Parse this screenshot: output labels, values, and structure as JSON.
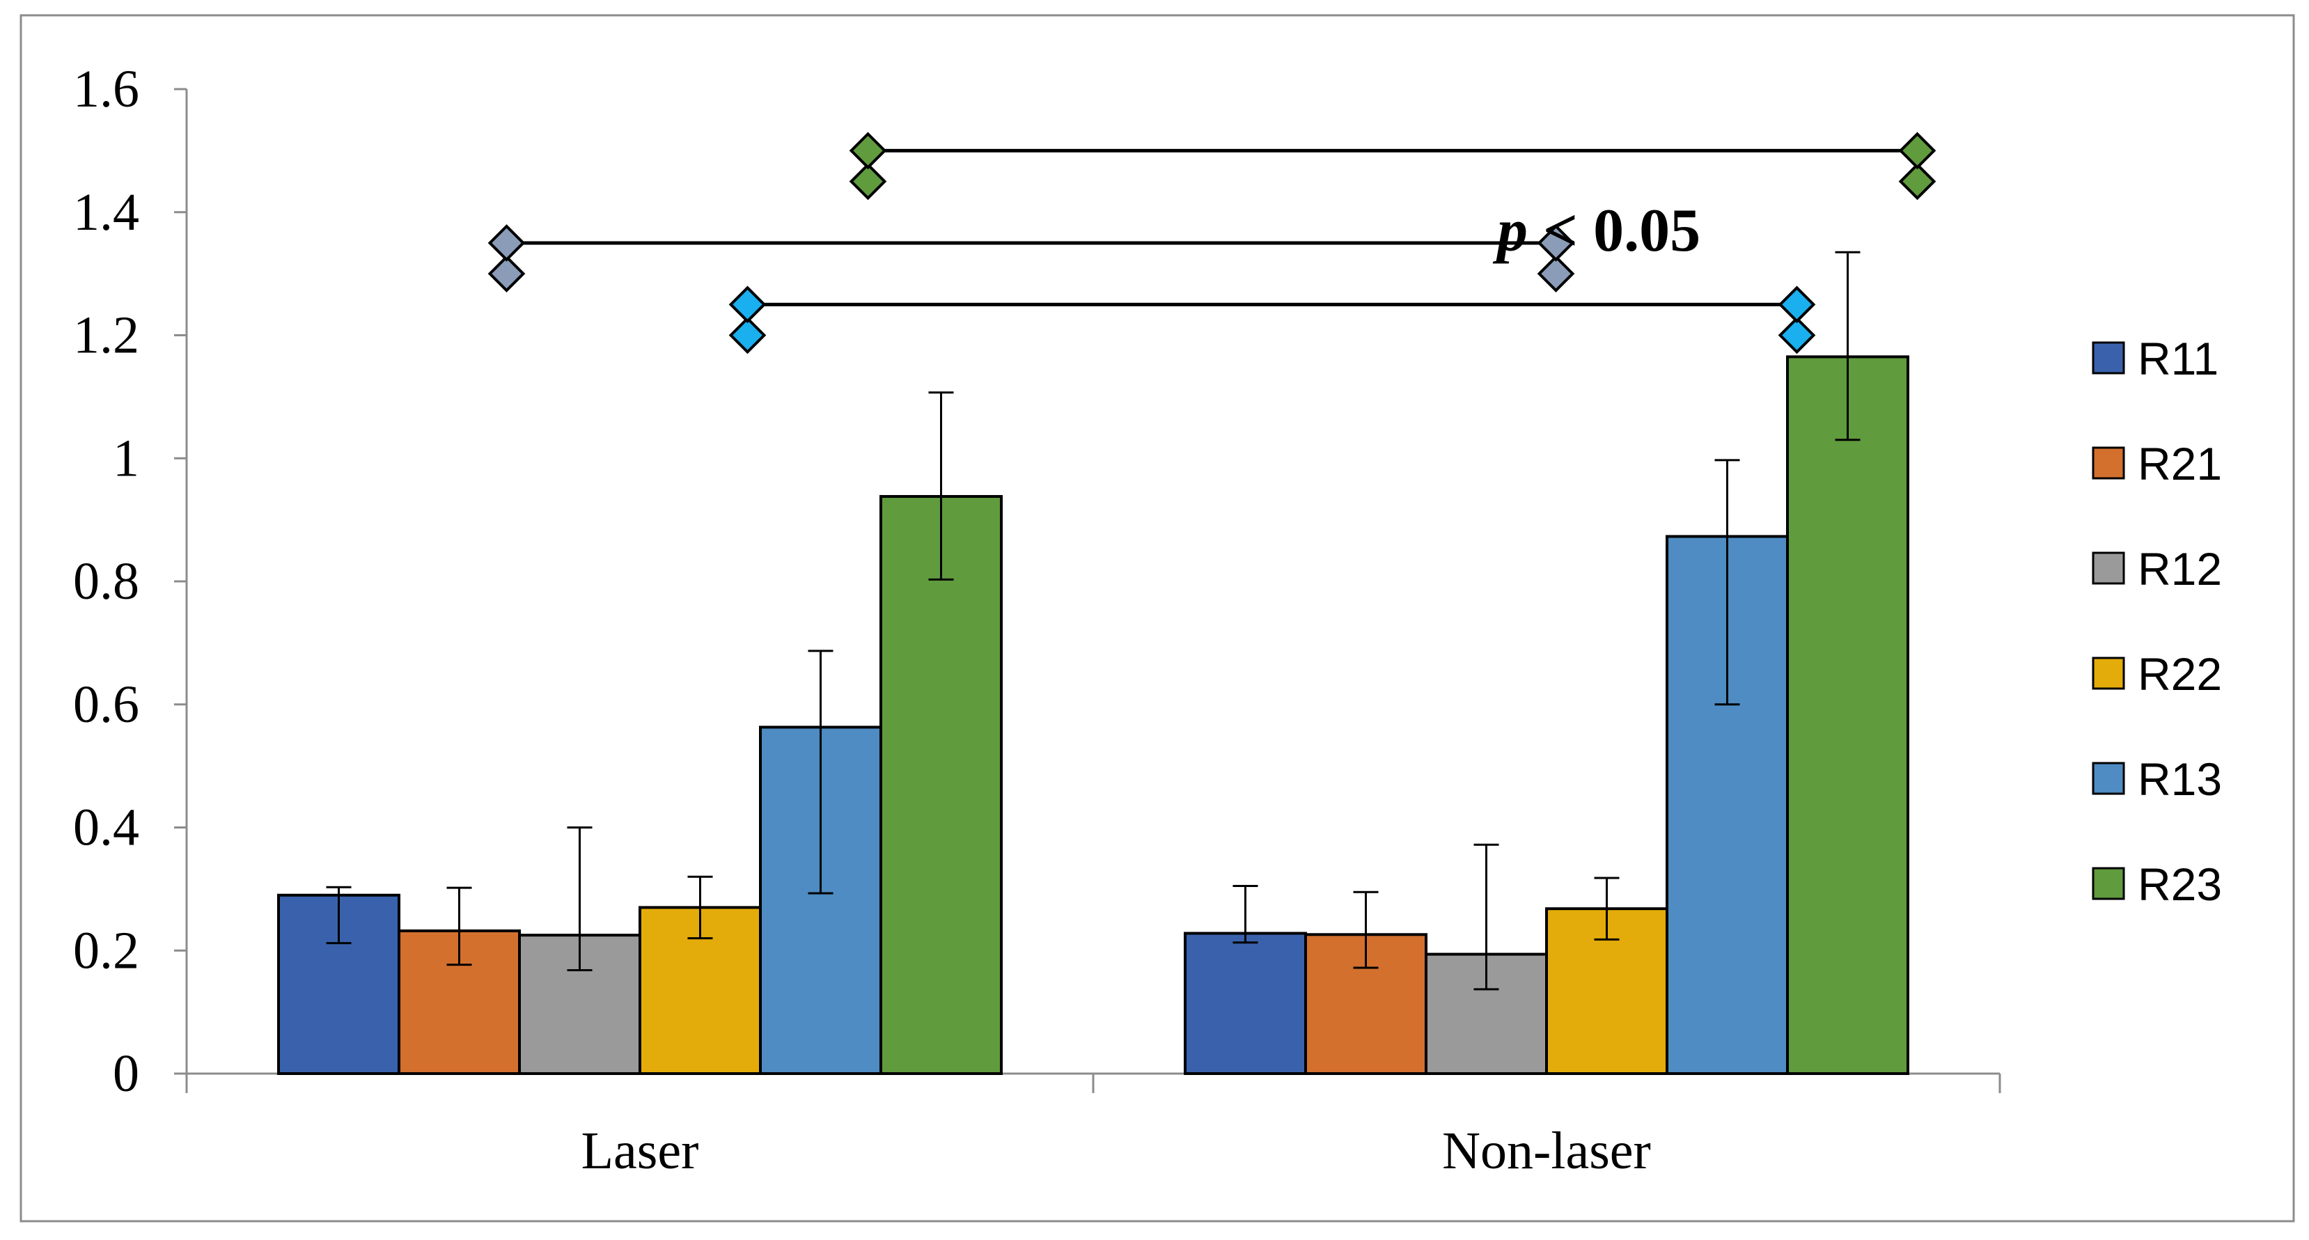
{
  "chart_data": {
    "type": "bar",
    "categories": [
      "Laser",
      "Non-laser"
    ],
    "series": [
      {
        "name": "R11",
        "color": "#3A62AC",
        "values": [
          0.29,
          0.228
        ],
        "err_low": [
          0.212,
          0.213
        ],
        "err_high": [
          0.303,
          0.305
        ]
      },
      {
        "name": "R21",
        "color": "#D4702E",
        "values": [
          0.232,
          0.226
        ],
        "err_low": [
          0.177,
          0.172
        ],
        "err_high": [
          0.302,
          0.295
        ]
      },
      {
        "name": "R12",
        "color": "#9A9A9A",
        "values": [
          0.225,
          0.194
        ],
        "err_low": [
          0.168,
          0.137
        ],
        "err_high": [
          0.4,
          0.372
        ]
      },
      {
        "name": "R22",
        "color": "#E4AC0A",
        "values": [
          0.27,
          0.268
        ],
        "err_low": [
          0.22,
          0.218
        ],
        "err_high": [
          0.32,
          0.318
        ]
      },
      {
        "name": "R13",
        "color": "#4E8CC3",
        "values": [
          0.563,
          0.873
        ],
        "err_low": [
          0.293,
          0.6
        ],
        "err_high": [
          0.687,
          0.997
        ]
      },
      {
        "name": "R23",
        "color": "#609B3D",
        "values": [
          0.938,
          1.165
        ],
        "err_low": [
          0.803,
          1.03
        ],
        "err_high": [
          1.107,
          1.335
        ]
      }
    ],
    "y_ticks": [
      "0",
      "0.2",
      "0.4",
      "0.6",
      "0.8",
      "1",
      "1.2",
      "1.4",
      "1.6"
    ],
    "ylim": [
      0,
      1.6
    ],
    "title": "",
    "xlabel": "",
    "ylabel": "",
    "legend_position": "right",
    "annotation": {
      "italic": "p",
      "rest": " < 0.05"
    },
    "significance_brackets": [
      {
        "series": "R12",
        "marker_color": "#8A9CB8",
        "y": 1.35,
        "y_lower": 1.3
      },
      {
        "series": "R13",
        "marker_color": "#1AAFEF",
        "y": 1.25,
        "y_lower": 1.2
      },
      {
        "series": "R23",
        "marker_color": "#609B3D",
        "y": 1.5,
        "y_lower": 1.45
      }
    ]
  }
}
